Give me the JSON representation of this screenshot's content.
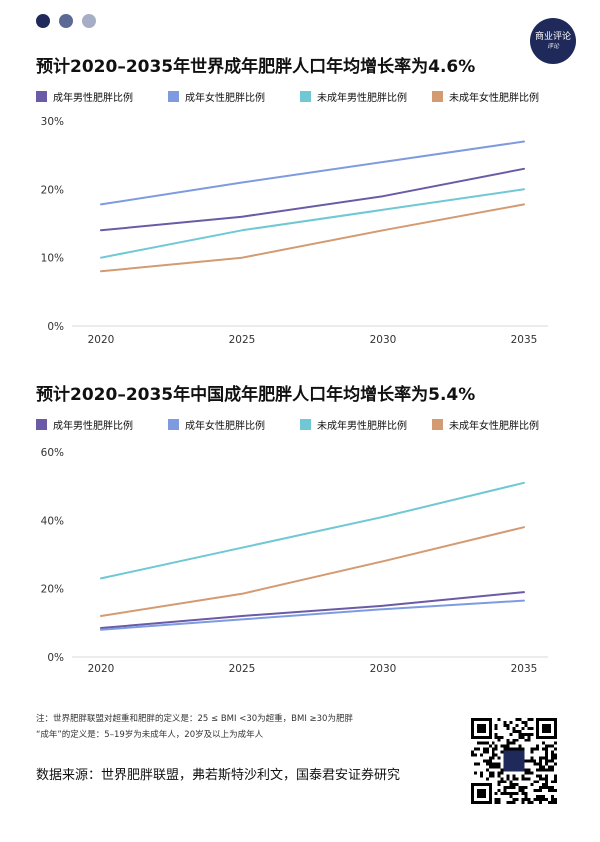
{
  "header": {
    "dot_colors": [
      "#1f2a5a",
      "#5a6a95",
      "#a6aec6"
    ],
    "logo_line1": "商业评论",
    "logo_line2": "评论"
  },
  "chart_data": [
    {
      "type": "line",
      "title": "预计2020–2035年世界成年肥胖人口年均增长率为4.6%",
      "x": [
        "2020",
        "2025",
        "2030",
        "2035"
      ],
      "ylim": [
        0,
        30
      ],
      "yticks": [
        "0%",
        "10%",
        "20%",
        "30%"
      ],
      "grid": false,
      "legend_position": "top",
      "series": [
        {
          "name": "成年男性肥胖比例",
          "color": "#6b5aa5",
          "values": [
            14,
            16,
            19,
            23
          ]
        },
        {
          "name": "成年女性肥胖比例",
          "color": "#7e9be0",
          "values": [
            17.8,
            21,
            24,
            27
          ]
        },
        {
          "name": "未成年男性肥胖比例",
          "color": "#6fc8d4",
          "values": [
            10,
            14,
            17,
            20
          ]
        },
        {
          "name": "未成年女性肥胖比例",
          "color": "#d49a72",
          "values": [
            8,
            10,
            14,
            17.8
          ]
        }
      ]
    },
    {
      "type": "line",
      "title": "预计2020–2035年中国成年肥胖人口年均增长率为5.4%",
      "x": [
        "2020",
        "2025",
        "2030",
        "2035"
      ],
      "ylim": [
        0,
        60
      ],
      "yticks": [
        "0%",
        "20%",
        "40%",
        "60%"
      ],
      "grid": false,
      "legend_position": "top",
      "series": [
        {
          "name": "成年男性肥胖比例",
          "color": "#6b5aa5",
          "values": [
            8.5,
            12,
            15,
            19
          ]
        },
        {
          "name": "成年女性肥胖比例",
          "color": "#7e9be0",
          "values": [
            8,
            11,
            14,
            16.5
          ]
        },
        {
          "name": "未成年男性肥胖比例",
          "color": "#6fc8d4",
          "values": [
            23,
            32,
            41,
            51
          ]
        },
        {
          "name": "未成年女性肥胖比例",
          "color": "#d49a72",
          "values": [
            12,
            18.5,
            28,
            38
          ]
        }
      ]
    }
  ],
  "notes": {
    "line1": "注：世界肥胖联盟对超重和肥胖的定义是：25 ≤ BMI <30为超重，BMI ≥30为肥胖",
    "line2": "“成年”的定义是：5–19岁为未成年人，20岁及以上为成年人"
  },
  "source": "数据来源：世界肥胖联盟，弗若斯特沙利文，国泰君安证券研究"
}
